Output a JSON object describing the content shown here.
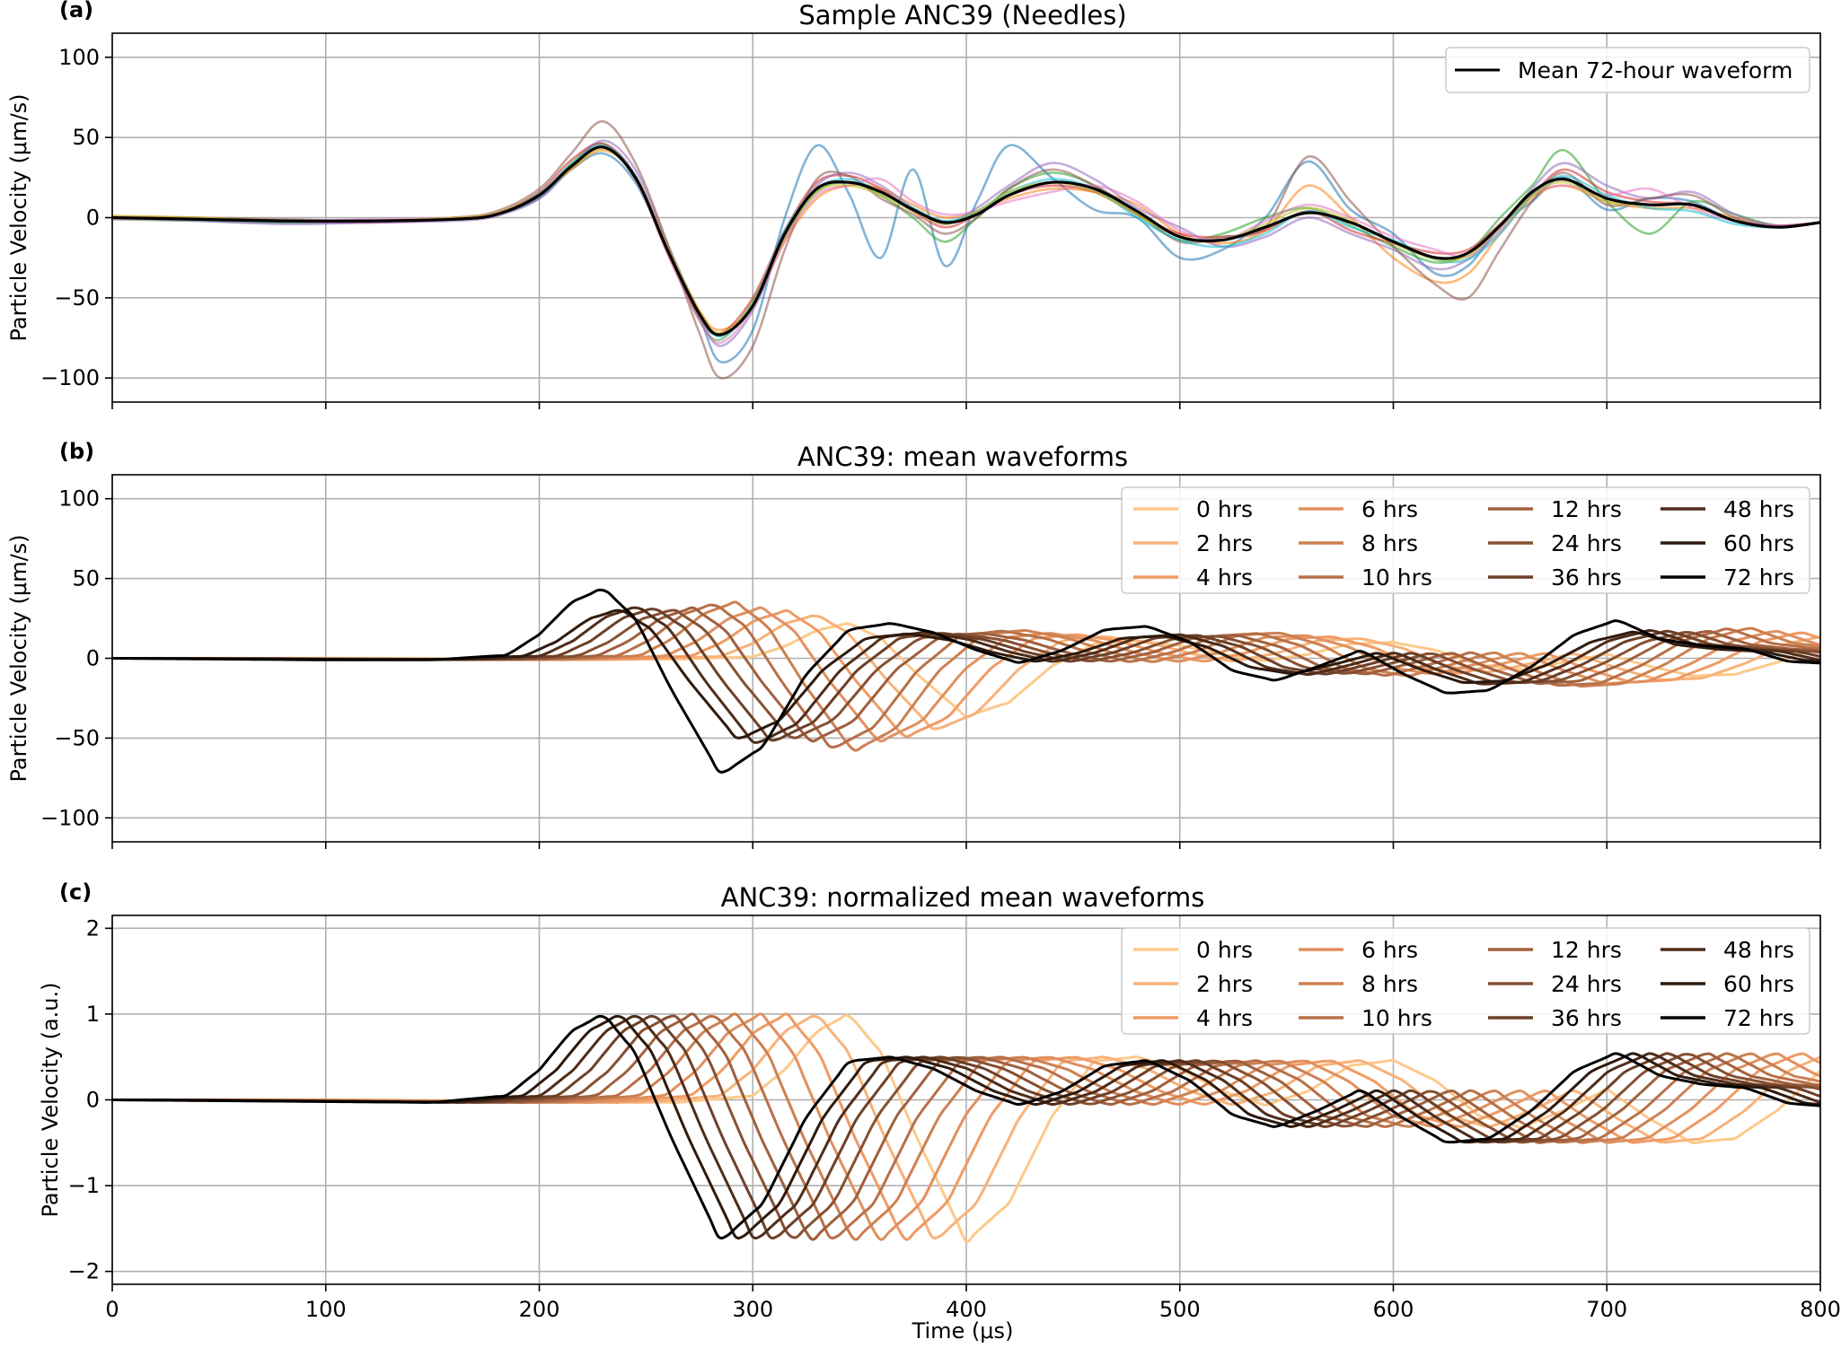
{
  "chart_data": [
    {
      "panel": "(a)",
      "type": "line",
      "title": "Sample ANC39 (Needles)",
      "ylabel": "Particle Velocity (μm/s)",
      "xlabel": "",
      "xlim": [
        0,
        800
      ],
      "ylim": [
        -115,
        115
      ],
      "xticks": [
        0,
        100,
        200,
        300,
        400,
        500,
        600,
        700,
        800
      ],
      "yticks": [
        -100,
        -50,
        0,
        50,
        100
      ],
      "ytick_labels": [
        "−100",
        "−50",
        "0",
        "50",
        "100"
      ],
      "grid": true,
      "legend_position": "upper-right",
      "legend": [
        "Mean 72-hour waveform"
      ],
      "x": [
        0,
        40,
        80,
        120,
        160,
        180,
        200,
        215,
        230,
        245,
        260,
        275,
        285,
        300,
        315,
        330,
        345,
        360,
        375,
        390,
        405,
        420,
        440,
        460,
        480,
        500,
        520,
        540,
        560,
        580,
        600,
        620,
        635,
        650,
        665,
        680,
        700,
        720,
        740,
        760,
        780,
        800
      ],
      "series": [
        {
          "name": "Mean 72-hour waveform",
          "color": "#000000",
          "width": 3.2,
          "alpha": 1,
          "y": [
            0,
            -1,
            -2,
            -2,
            -1,
            2,
            14,
            32,
            44,
            25,
            -20,
            -60,
            -73,
            -55,
            -10,
            18,
            22,
            16,
            5,
            -3,
            2,
            14,
            22,
            18,
            4,
            -12,
            -14,
            -6,
            3,
            -3,
            -15,
            -25,
            -22,
            -5,
            16,
            24,
            12,
            8,
            8,
            -2,
            -6,
            -3
          ]
        },
        {
          "name": "",
          "color": "#1f77b4",
          "width": 2.6,
          "alpha": 0.55,
          "y": [
            0,
            -1,
            -3,
            -3,
            -1,
            2,
            12,
            30,
            40,
            22,
            -20,
            -62,
            -90,
            -70,
            0,
            45,
            15,
            -25,
            30,
            -30,
            10,
            45,
            25,
            5,
            0,
            -25,
            -20,
            0,
            35,
            5,
            -10,
            -35,
            -30,
            -5,
            10,
            25,
            5,
            12,
            10,
            -2,
            -5,
            -3
          ]
        },
        {
          "name": "",
          "color": "#ff7f0e",
          "width": 2.6,
          "alpha": 0.55,
          "y": [
            1,
            0,
            -2,
            -2,
            0,
            3,
            15,
            30,
            42,
            26,
            -18,
            -58,
            -70,
            -55,
            -15,
            12,
            20,
            18,
            8,
            0,
            4,
            12,
            18,
            16,
            8,
            -10,
            -16,
            -8,
            20,
            0,
            -25,
            -40,
            -35,
            -10,
            12,
            20,
            10,
            6,
            6,
            0,
            -5,
            -3
          ]
        },
        {
          "name": "",
          "color": "#2ca02c",
          "width": 2.6,
          "alpha": 0.55,
          "y": [
            -1,
            -2,
            -3,
            -2,
            -1,
            2,
            13,
            34,
            46,
            24,
            -20,
            -64,
            -76,
            -52,
            -12,
            16,
            22,
            14,
            0,
            -15,
            0,
            18,
            28,
            20,
            2,
            -14,
            -10,
            0,
            6,
            -5,
            -18,
            -28,
            -22,
            0,
            20,
            42,
            10,
            -10,
            10,
            2,
            -5,
            -3
          ]
        },
        {
          "name": "",
          "color": "#d62728",
          "width": 2.6,
          "alpha": 0.55,
          "y": [
            0,
            -1,
            -2,
            -3,
            -1,
            2,
            16,
            36,
            46,
            26,
            -22,
            -62,
            -72,
            -50,
            -8,
            22,
            26,
            18,
            4,
            -6,
            2,
            14,
            20,
            16,
            2,
            -10,
            -12,
            -8,
            4,
            -8,
            -16,
            -22,
            -20,
            -4,
            14,
            30,
            16,
            10,
            8,
            -2,
            -5,
            -3
          ]
        },
        {
          "name": "",
          "color": "#9467bd",
          "width": 2.6,
          "alpha": 0.55,
          "y": [
            0,
            -2,
            -4,
            -3,
            -2,
            1,
            12,
            32,
            48,
            30,
            -16,
            -60,
            -80,
            -58,
            -12,
            20,
            28,
            20,
            6,
            -4,
            6,
            20,
            34,
            24,
            6,
            -6,
            -18,
            -12,
            0,
            -10,
            -20,
            -32,
            -26,
            -8,
            18,
            34,
            20,
            12,
            16,
            2,
            -5,
            -3
          ]
        },
        {
          "name": "",
          "color": "#8c564b",
          "width": 2.6,
          "alpha": 0.55,
          "y": [
            0,
            0,
            -1,
            -2,
            0,
            4,
            18,
            40,
            60,
            34,
            -16,
            -72,
            -100,
            -80,
            -20,
            24,
            26,
            12,
            2,
            -10,
            0,
            18,
            30,
            20,
            4,
            -15,
            -12,
            -6,
            38,
            10,
            -18,
            -42,
            -50,
            -20,
            10,
            28,
            8,
            12,
            14,
            0,
            -6,
            -3
          ]
        },
        {
          "name": "",
          "color": "#e377c2",
          "width": 2.6,
          "alpha": 0.55,
          "y": [
            -1,
            -1,
            -2,
            -1,
            0,
            3,
            14,
            32,
            44,
            24,
            -22,
            -64,
            -78,
            -56,
            -14,
            14,
            20,
            24,
            10,
            2,
            4,
            10,
            16,
            20,
            10,
            -8,
            -14,
            -2,
            8,
            0,
            -12,
            -20,
            -24,
            -6,
            14,
            20,
            14,
            18,
            6,
            -2,
            -5,
            -3
          ]
        },
        {
          "name": "",
          "color": "#17becf",
          "width": 2.6,
          "alpha": 0.55,
          "y": [
            0,
            -1,
            -2,
            -2,
            -1,
            2,
            15,
            33,
            45,
            26,
            -20,
            -60,
            -74,
            -54,
            -8,
            18,
            24,
            16,
            6,
            -2,
            4,
            16,
            24,
            18,
            0,
            -14,
            -18,
            -10,
            4,
            -6,
            -14,
            -26,
            -26,
            -10,
            14,
            26,
            14,
            6,
            4,
            -4,
            -6,
            -3
          ]
        },
        {
          "name": "",
          "color": "#bcbd22",
          "width": 2.6,
          "alpha": 0.55,
          "y": [
            1,
            0,
            -2,
            -2,
            0,
            3,
            14,
            31,
            43,
            25,
            -18,
            -58,
            -72,
            -54,
            -12,
            16,
            20,
            14,
            4,
            -4,
            4,
            16,
            22,
            16,
            2,
            -12,
            -14,
            -4,
            6,
            -2,
            -16,
            -26,
            -24,
            -6,
            14,
            22,
            10,
            8,
            8,
            -2,
            -6,
            -3
          ]
        }
      ]
    },
    {
      "panel": "(b)",
      "type": "line",
      "title": "ANC39: mean waveforms",
      "ylabel": "Particle Velocity (μm/s)",
      "xlabel": "",
      "xlim": [
        0,
        800
      ],
      "ylim": [
        -115,
        115
      ],
      "xticks": [
        0,
        100,
        200,
        300,
        400,
        500,
        600,
        700,
        800
      ],
      "yticks": [
        -100,
        -50,
        0,
        50,
        100
      ],
      "ytick_labels": [
        "−100",
        "−50",
        "0",
        "50",
        "100"
      ],
      "grid": true,
      "legend_position": "upper-right",
      "legend_columns": 4,
      "x_template": [
        0,
        100,
        150,
        185,
        200,
        215,
        230,
        245,
        262,
        285,
        305,
        325,
        345,
        365,
        385,
        405,
        425,
        445,
        465,
        485,
        505,
        525,
        545,
        565,
        585,
        605,
        625,
        645,
        665,
        685,
        705,
        725,
        745,
        765,
        785,
        800
      ],
      "y_template": [
        0,
        -1,
        -1,
        2,
        15,
        35,
        44,
        25,
        -20,
        -73,
        -55,
        -10,
        18,
        22,
        16,
        5,
        -3,
        5,
        18,
        20,
        10,
        -8,
        -14,
        -5,
        5,
        -10,
        -22,
        -20,
        -5,
        15,
        24,
        12,
        8,
        6,
        -2,
        -3
      ],
      "series": [
        {
          "name": "0 hrs",
          "color": "#fdc98a",
          "shift": 115,
          "amp": 0.5
        },
        {
          "name": "2 hrs",
          "color": "#f8b27a",
          "shift": 100,
          "amp": 0.62
        },
        {
          "name": "4 hrs",
          "color": "#f09a64",
          "shift": 86,
          "amp": 0.68
        },
        {
          "name": "6 hrs",
          "color": "#e0905f",
          "shift": 74,
          "amp": 0.72
        },
        {
          "name": "8 hrs",
          "color": "#cd8052",
          "shift": 62,
          "amp": 0.8
        },
        {
          "name": "10 hrs",
          "color": "#b87048",
          "shift": 52,
          "amp": 0.78
        },
        {
          "name": "12 hrs",
          "color": "#a0603e",
          "shift": 42,
          "amp": 0.72
        },
        {
          "name": "24 hrs",
          "color": "#865032",
          "shift": 33,
          "amp": 0.7
        },
        {
          "name": "36 hrs",
          "color": "#6d4028",
          "shift": 24,
          "amp": 0.72
        },
        {
          "name": "48 hrs",
          "color": "#4f2d1a",
          "shift": 16,
          "amp": 0.74
        },
        {
          "name": "60 hrs",
          "color": "#2e1a0e",
          "shift": 8,
          "amp": 0.7
        },
        {
          "name": "72 hrs",
          "color": "#000000",
          "shift": 0,
          "amp": 1.0
        }
      ]
    },
    {
      "panel": "(c)",
      "type": "line",
      "title": "ANC39: normalized mean waveforms",
      "ylabel": "Particle Velocity (a.u.)",
      "xlabel": "Time (μs)",
      "xlim": [
        0,
        800
      ],
      "ylim": [
        -2.15,
        2.15
      ],
      "xticks": [
        0,
        100,
        200,
        300,
        400,
        500,
        600,
        700,
        800
      ],
      "xtick_labels": [
        "0",
        "100",
        "200",
        "300",
        "400",
        "500",
        "600",
        "700",
        "800"
      ],
      "yticks": [
        -2,
        -1,
        0,
        1,
        2
      ],
      "ytick_labels": [
        "−2",
        "−1",
        "0",
        "1",
        "2"
      ],
      "grid": true,
      "legend_position": "upper-right",
      "legend_columns": 4,
      "x_template": [
        0,
        100,
        150,
        185,
        200,
        215,
        230,
        245,
        262,
        285,
        305,
        325,
        345,
        365,
        385,
        405,
        425,
        445,
        465,
        485,
        505,
        525,
        545,
        565,
        585,
        605,
        625,
        645,
        665,
        685,
        705,
        725,
        745,
        765,
        785,
        800
      ],
      "y_template": [
        0,
        -0.02,
        -0.03,
        0.05,
        0.35,
        0.8,
        1.0,
        0.55,
        -0.45,
        -1.65,
        -1.2,
        -0.2,
        0.45,
        0.5,
        0.36,
        0.1,
        -0.06,
        0.1,
        0.4,
        0.46,
        0.22,
        -0.18,
        -0.32,
        -0.12,
        0.12,
        -0.22,
        -0.5,
        -0.45,
        -0.12,
        0.34,
        0.55,
        0.28,
        0.18,
        0.14,
        -0.04,
        -0.07
      ],
      "series": [
        {
          "name": "0 hrs",
          "color": "#fdc98a",
          "shift": 115,
          "amp": 1.0
        },
        {
          "name": "2 hrs",
          "color": "#f8b27a",
          "shift": 100,
          "amp": 1.0
        },
        {
          "name": "4 hrs",
          "color": "#f09a64",
          "shift": 86,
          "amp": 1.0
        },
        {
          "name": "6 hrs",
          "color": "#e0905f",
          "shift": 74,
          "amp": 1.0
        },
        {
          "name": "8 hrs",
          "color": "#cd8052",
          "shift": 62,
          "amp": 1.0
        },
        {
          "name": "10 hrs",
          "color": "#b87048",
          "shift": 52,
          "amp": 1.0
        },
        {
          "name": "12 hrs",
          "color": "#a0603e",
          "shift": 42,
          "amp": 1.0
        },
        {
          "name": "24 hrs",
          "color": "#865032",
          "shift": 33,
          "amp": 1.0
        },
        {
          "name": "36 hrs",
          "color": "#6d4028",
          "shift": 24,
          "amp": 1.0
        },
        {
          "name": "48 hrs",
          "color": "#4f2d1a",
          "shift": 16,
          "amp": 1.0
        },
        {
          "name": "60 hrs",
          "color": "#2e1a0e",
          "shift": 8,
          "amp": 1.0
        },
        {
          "name": "72 hrs",
          "color": "#000000",
          "shift": 0,
          "amp": 1.0
        }
      ]
    }
  ]
}
